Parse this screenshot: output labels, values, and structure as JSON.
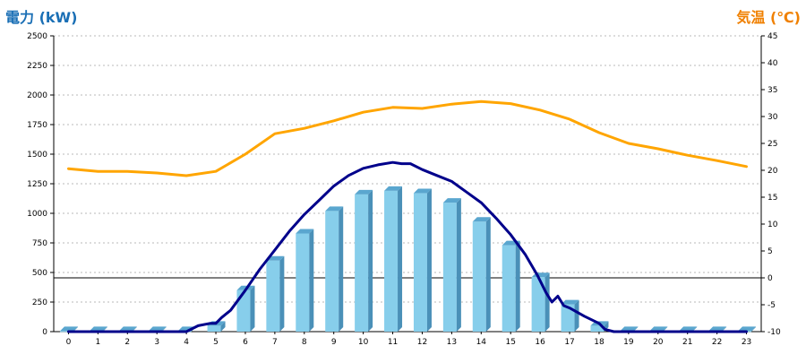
{
  "chart_data": {
    "type": "bar",
    "title_left": "電力 (kW)",
    "title_right": "気温 (℃)",
    "colors": {
      "left_title": "#1a6fb5",
      "right_title": "#f08000",
      "bar_front": "#87ceeb",
      "bar_side": "#4a90b8",
      "bar_top": "#5aa6cf",
      "line_power": "#00008b",
      "line_temp": "#ffa500"
    },
    "categories": [
      "0",
      "1",
      "2",
      "3",
      "4",
      "5",
      "6",
      "7",
      "8",
      "9",
      "10",
      "11",
      "12",
      "13",
      "14",
      "15",
      "16",
      "17",
      "18",
      "19",
      "20",
      "21",
      "22",
      "23"
    ],
    "y_left": {
      "min": 0,
      "max": 2500,
      "ticks": [
        "0",
        "250",
        "500",
        "750",
        "1000",
        "1250",
        "1500",
        "1750",
        "2000",
        "2250",
        "2500"
      ]
    },
    "y_right": {
      "min": -10,
      "max": 45,
      "ticks": [
        "-10",
        "-5",
        "0",
        "5",
        "10",
        "15",
        "20",
        "25",
        "30",
        "35",
        "40",
        "45"
      ]
    },
    "zero_reference_temp": 0,
    "grid": "horizontal-dotted",
    "series": [
      {
        "kind": "bar",
        "axis": "left",
        "values": [
          5,
          5,
          5,
          5,
          5,
          50,
          350,
          600,
          830,
          1020,
          1160,
          1190,
          1170,
          1090,
          930,
          730,
          460,
          230,
          50,
          5,
          5,
          5,
          5,
          5
        ]
      },
      {
        "kind": "line",
        "axis": "left",
        "x": [
          0,
          4,
          4.4,
          4.8,
          5.0,
          5.2,
          5.5,
          6,
          6.5,
          7,
          7.5,
          8,
          8.5,
          9,
          9.5,
          10,
          10.5,
          11,
          11.3,
          11.6,
          12,
          12.5,
          13,
          13.5,
          14,
          14.5,
          15,
          15.5,
          15.9,
          16.2,
          16.4,
          16.6,
          16.8,
          17,
          17.5,
          18,
          18.2,
          18.5,
          23
        ],
        "values": [
          0,
          0,
          50,
          70,
          70,
          120,
          180,
          350,
          530,
          690,
          850,
          990,
          1110,
          1230,
          1320,
          1380,
          1410,
          1430,
          1420,
          1420,
          1370,
          1320,
          1270,
          1180,
          1090,
          960,
          820,
          650,
          480,
          330,
          250,
          300,
          220,
          200,
          130,
          70,
          20,
          0,
          0
        ]
      },
      {
        "kind": "line",
        "axis": "right",
        "x": [
          0,
          1,
          2,
          3,
          4,
          5,
          6,
          7,
          8,
          9,
          10,
          11,
          12,
          13,
          14,
          15,
          16,
          17,
          18,
          19,
          20,
          21,
          22,
          23
        ],
        "values": [
          20.3,
          19.8,
          19.8,
          19.5,
          19.0,
          19.8,
          23.0,
          26.8,
          27.8,
          29.2,
          30.8,
          31.7,
          31.5,
          32.3,
          32.8,
          32.4,
          31.2,
          29.5,
          27.0,
          25.0,
          24.0,
          22.8,
          21.8,
          20.7
        ]
      }
    ]
  }
}
